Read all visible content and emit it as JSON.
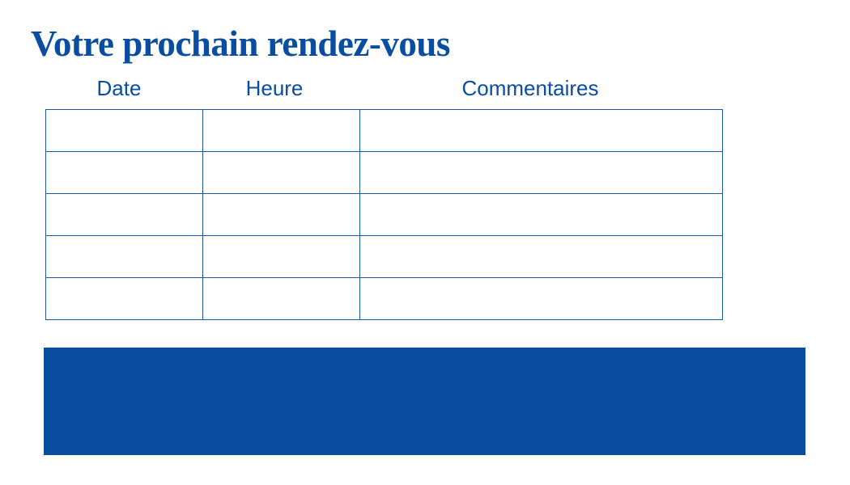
{
  "title": "Votre prochain rendez-vous",
  "columns": [
    "Date",
    "Heure",
    "Commentaires"
  ],
  "rows": [
    [
      "",
      "",
      ""
    ],
    [
      "",
      "",
      ""
    ],
    [
      "",
      "",
      ""
    ],
    [
      "",
      "",
      ""
    ],
    [
      "",
      "",
      ""
    ]
  ],
  "colors": {
    "brand_blue": "#084da0"
  }
}
